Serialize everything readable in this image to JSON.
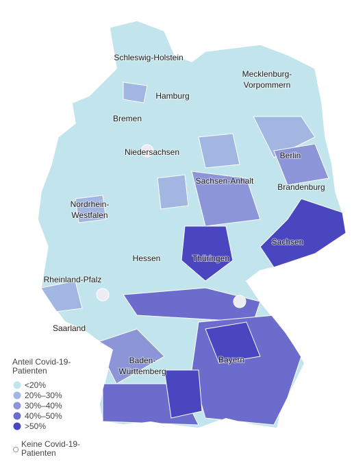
{
  "map": {
    "labels": [
      "Schleswig-Holstein",
      "Mecklenburg-",
      "Vorpommern",
      "Hamburg",
      "Bremen",
      "Niedersachsen",
      "Berlin",
      "Sachsen-Anhalt",
      "Brandenburg",
      "Nordrhein-",
      "Westfalen",
      "Sachsen",
      "Hessen",
      "Thüringen",
      "Rheinland-Pfalz",
      "Saarland",
      "Baden-",
      "Württemberg",
      "Bayern"
    ],
    "legend": {
      "title": [
        "Anteil Covid-19-",
        "Patienten"
      ],
      "items": [
        {
          "label": "<20%",
          "color": "#c2e4ec"
        },
        {
          "label": "20%–30%",
          "color": "#a2b6e2"
        },
        {
          "label": "30%–40%",
          "color": "#8b95d8"
        },
        {
          "label": "40%–50%",
          "color": "#6c6ccd"
        },
        {
          "label": ">50%",
          "color": "#4946c0"
        }
      ],
      "no_data": [
        "Keine Covid-19-",
        "Patienten"
      ]
    }
  }
}
